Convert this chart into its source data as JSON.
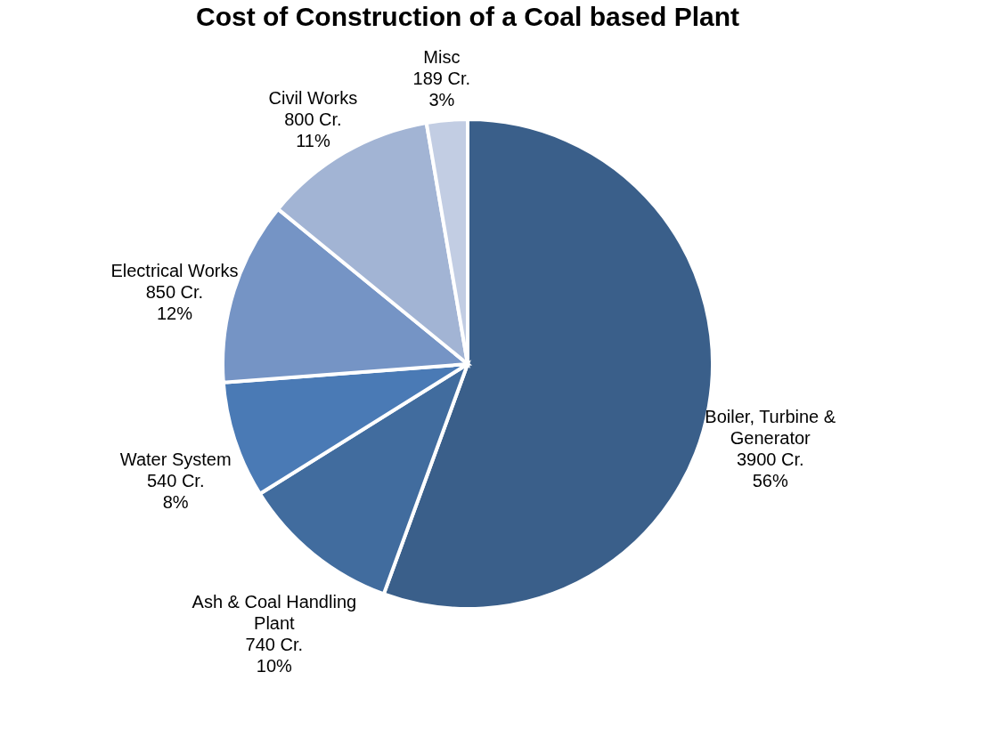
{
  "chart_data": {
    "type": "pie",
    "title": "Cost of Construction of a Coal based Plant",
    "categories": [
      "Boiler, Turbine & Generator",
      "Ash & Coal Handling Plant",
      "Water System",
      "Electrical Works",
      "Civil Works",
      "Misc"
    ],
    "values": [
      3900,
      740,
      540,
      850,
      800,
      189
    ],
    "value_labels": [
      "3900 Cr.\n56%",
      "740 Cr.\n10%",
      "540 Cr.\n8%",
      "850 Cr.\n12%",
      "800 Cr.\n11%",
      "189 Cr.\n3%"
    ],
    "colors": [
      "#3a5f8a",
      "#416c9e",
      "#4a7ab5",
      "#7594c5",
      "#a2b4d4",
      "#c2cde3"
    ],
    "legend": false
  }
}
